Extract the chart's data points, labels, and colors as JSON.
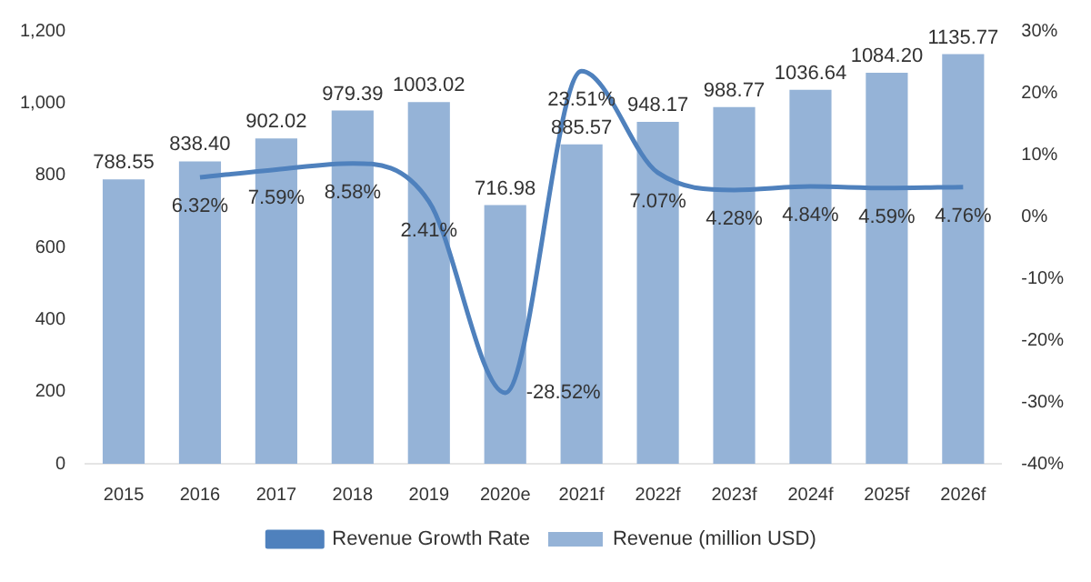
{
  "chart_data": {
    "type": "bar",
    "categories": [
      "2015",
      "2016",
      "2017",
      "2018",
      "2019",
      "2020e",
      "2021f",
      "2022f",
      "2023f",
      "2024f",
      "2025f",
      "2026f"
    ],
    "series": [
      {
        "name": "Revenue (million USD)",
        "color": "#95b3d7",
        "values": [
          788.55,
          838.4,
          902.02,
          979.39,
          1003.02,
          716.98,
          885.57,
          948.17,
          988.77,
          1036.64,
          1084.2,
          1135.77
        ],
        "value_labels": [
          "788.55",
          "838.40",
          "902.02",
          "979.39",
          "1003.02",
          "716.98",
          "885.57",
          "948.17",
          "988.77",
          "1036.64",
          "1084.20",
          "1135.77"
        ]
      },
      {
        "name": "Revenue Growth Rate",
        "type": "line",
        "axis": "y2",
        "color": "#4f81bd",
        "values": [
          null,
          6.32,
          7.59,
          8.58,
          2.41,
          -28.52,
          23.51,
          7.07,
          4.28,
          4.84,
          4.59,
          4.76
        ],
        "value_labels": [
          null,
          "6.32%",
          "7.59%",
          "8.58%",
          "2.41%",
          "-28.52%",
          "23.51%",
          "7.07%",
          "4.28%",
          "4.84%",
          "4.59%",
          "4.76%"
        ]
      }
    ],
    "ylim": [
      0,
      1200
    ],
    "yticks": [
      0,
      200,
      400,
      600,
      800,
      {
        "value": 1000,
        "label": "1,000"
      },
      {
        "value": 1200,
        "label": "1,200"
      }
    ],
    "y2lim": [
      -40,
      30
    ],
    "y2ticks": [
      {
        "value": -40,
        "label": "-40%"
      },
      {
        "value": -30,
        "label": "-30%"
      },
      {
        "value": -20,
        "label": "-20%"
      },
      {
        "value": -10,
        "label": "-10%"
      },
      {
        "value": 0,
        "label": "0%"
      },
      {
        "value": 10,
        "label": "10%"
      },
      {
        "value": 20,
        "label": "20%"
      },
      {
        "value": 30,
        "label": "30%"
      }
    ],
    "grid": false,
    "legend": "bottom",
    "marker": "none",
    "line_style": "solid"
  }
}
